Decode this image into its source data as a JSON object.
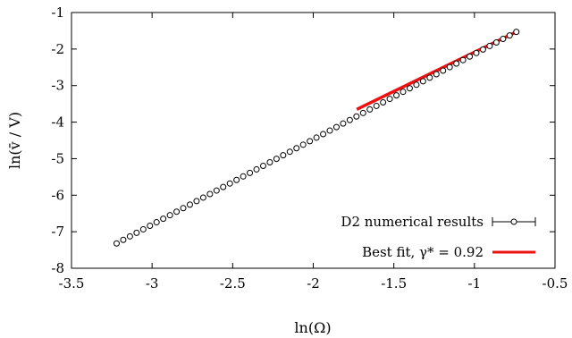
{
  "chart_data": {
    "type": "scatter",
    "xlabel": "ln(Ω)",
    "ylabel": "ln(v̄ / V)",
    "xlim": [
      -3.5,
      -0.5
    ],
    "ylim": [
      -8,
      -1
    ],
    "xticks": [
      "-3.5",
      "-3",
      "-2.5",
      "-2",
      "-1.5",
      "-1",
      "-0.5"
    ],
    "yticks": [
      "-8",
      "-7",
      "-6",
      "-5",
      "-4",
      "-3",
      "-2",
      "-1"
    ],
    "xtick_values": [
      -3.5,
      -3,
      -2.5,
      -2,
      -1.5,
      -1,
      -0.5
    ],
    "ytick_values": [
      -8,
      -7,
      -6,
      -5,
      -4,
      -3,
      -2,
      -1
    ],
    "grid": false,
    "legend_position": "bottom-right",
    "colors": {
      "data": "#000000",
      "fit": "#ee1111"
    },
    "series": [
      {
        "name": "D2 numerical results",
        "style": "open-circles-with-errorbars",
        "x_start": -3.22,
        "x_end": -0.74,
        "y_start": -7.32,
        "y_end": -1.53,
        "points": 61
      },
      {
        "name": "Best fit, γ* = 0.92",
        "style": "line",
        "x_start": -1.73,
        "x_end": -0.74,
        "y_start": -3.65,
        "y_end": -1.53
      }
    ]
  }
}
